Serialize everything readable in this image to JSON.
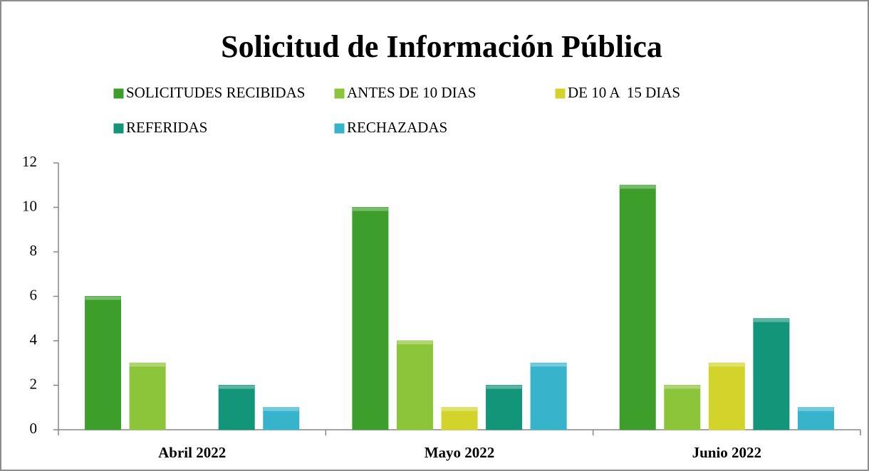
{
  "chart_data": {
    "type": "bar",
    "title": "Solicitud de Información Pública",
    "categories": [
      "Abril 2022",
      "Mayo 2022",
      "Junio 2022"
    ],
    "series": [
      {
        "name": "SOLICITUDES RECIBIDAS",
        "color": "#3e9e2c",
        "values": [
          6,
          10,
          11
        ]
      },
      {
        "name": "ANTES DE 10 DIAS",
        "color": "#8cc43a",
        "values": [
          3,
          4,
          2
        ]
      },
      {
        "name": "DE 10 A  15 DIAS",
        "color": "#d2d42c",
        "values": [
          0,
          1,
          3
        ]
      },
      {
        "name": "REFERIDAS",
        "color": "#13957a",
        "values": [
          2,
          2,
          5
        ]
      },
      {
        "name": "RECHAZADAS",
        "color": "#37b3cc",
        "values": [
          1,
          3,
          1
        ]
      }
    ],
    "ylim": [
      0,
      12
    ],
    "yticks": [
      0,
      2,
      4,
      6,
      8,
      10,
      12
    ],
    "grid": false
  }
}
